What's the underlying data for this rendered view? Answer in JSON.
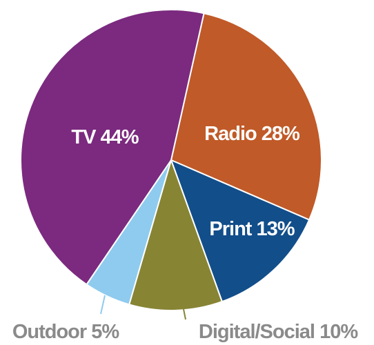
{
  "chart_data": {
    "type": "pie",
    "categories": [
      "Radio",
      "Print",
      "Digital/Social",
      "Outdoor",
      "TV"
    ],
    "values": [
      28,
      13,
      10,
      5,
      44
    ],
    "value_labels": [
      "28%",
      "13%",
      "10%",
      "5%",
      "44%"
    ],
    "colors": [
      "#c05a28",
      "#124e8a",
      "#878434",
      "#8ecbef",
      "#7b2a7f"
    ],
    "start_angle": 12.6
  }
}
